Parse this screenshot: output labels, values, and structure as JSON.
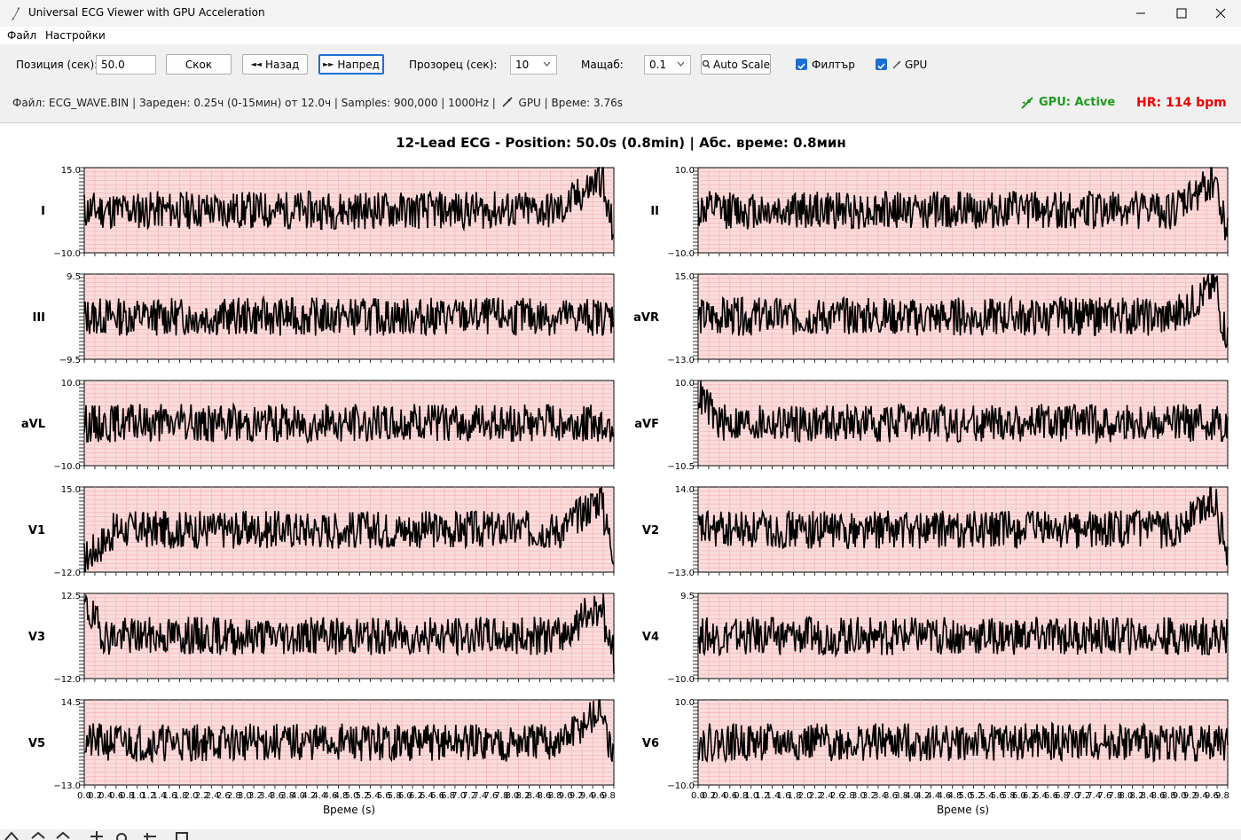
{
  "window": {
    "title": "Universal ECG Viewer with GPU Acceleration"
  },
  "menu": [
    "Файл",
    "Настройки"
  ],
  "controls": {
    "position_label": "Позиция (сек):",
    "position_value": "50.0",
    "jump_label": "Скок",
    "back_label": "Назад",
    "back_icon": "◄◄",
    "forward_label": "Напред",
    "forward_icon": "►►",
    "window_label": "Прозорец (сек):",
    "window_value": "10",
    "scale_label": "Мащаб:",
    "scale_value": "0.1",
    "auto_scale_label": "Auto Scale",
    "filter_label": "Филтър",
    "filter_checked": true,
    "gpu_label": "GPU",
    "gpu_checked": true
  },
  "status": {
    "info": "Файл: ECG_WAVE.BIN | Зареден: 0.25ч (0-15мин) от 12.0ч | Samples: 900,000 | 1000Hz |",
    "info_gpu": "GPU | Време: 3.76s",
    "gpu_state": "GPU: Active",
    "heart_rate": "HR: 114 bpm"
  },
  "colors": {
    "accent": "#1a6fd1",
    "gpu_active": "#1e9a1e",
    "heart_rate": "#ee0000",
    "grid_bg": "#fbdcdc",
    "grid_line": "#f2b0b0",
    "trace": "#000000"
  },
  "chart_data": {
    "type": "line",
    "title": "12-Lead ECG - Position: 50.0s (0.8min) | Абс. време: 0.8мин",
    "xlabel": "Време (s)",
    "x_range": [
      0,
      9.9
    ],
    "x_ticks": [
      "0.0",
      "0.2",
      "0.4",
      "0.6",
      "0.8",
      "1.0",
      "1.2",
      "1.4",
      "1.6",
      "1.8",
      "2.0",
      "2.2",
      "2.4",
      "2.6",
      "2.8",
      "3.0",
      "3.2",
      "3.4",
      "3.6",
      "3.8",
      "4.0",
      "4.2",
      "4.4",
      "4.6",
      "4.8",
      "5.0",
      "5.2",
      "5.4",
      "5.6",
      "5.8",
      "6.0",
      "6.2",
      "6.4",
      "6.6",
      "6.8",
      "7.0",
      "7.2",
      "7.4",
      "7.6",
      "7.8",
      "8.0",
      "8.2",
      "8.4",
      "8.6",
      "8.8",
      "9.0",
      "9.2",
      "9.4",
      "9.6",
      "9.8"
    ],
    "grid": true,
    "leads": [
      {
        "name": "I",
        "ylim": [
          -10.0,
          15.0
        ],
        "col": 0,
        "row": 0,
        "pattern": "end_peak",
        "seed": 11
      },
      {
        "name": "II",
        "ylim": [
          -10.0,
          10.0
        ],
        "col": 1,
        "row": 0,
        "pattern": "end_peak",
        "seed": 12
      },
      {
        "name": "III",
        "ylim": [
          -9.5,
          9.5
        ],
        "col": 0,
        "row": 1,
        "pattern": "noise",
        "seed": 13
      },
      {
        "name": "aVR",
        "ylim": [
          -13.0,
          15.0
        ],
        "col": 1,
        "row": 1,
        "pattern": "end_peak",
        "seed": 14
      },
      {
        "name": "aVL",
        "ylim": [
          -10.0,
          10.0
        ],
        "col": 0,
        "row": 2,
        "pattern": "noise",
        "seed": 15
      },
      {
        "name": "aVF",
        "ylim": [
          -10.5,
          10.0
        ],
        "col": 1,
        "row": 2,
        "pattern": "start_high",
        "seed": 16
      },
      {
        "name": "V1",
        "ylim": [
          -12.0,
          15.0
        ],
        "col": 0,
        "row": 3,
        "pattern": "start_low_end_peak",
        "seed": 17
      },
      {
        "name": "V2",
        "ylim": [
          -13.0,
          14.0
        ],
        "col": 1,
        "row": 3,
        "pattern": "end_peak",
        "seed": 18
      },
      {
        "name": "V3",
        "ylim": [
          -12.0,
          12.5
        ],
        "col": 0,
        "row": 4,
        "pattern": "start_high_end_peak",
        "seed": 19
      },
      {
        "name": "V4",
        "ylim": [
          -10.0,
          9.5
        ],
        "col": 1,
        "row": 4,
        "pattern": "noise",
        "seed": 20
      },
      {
        "name": "V5",
        "ylim": [
          -13.0,
          14.5
        ],
        "col": 0,
        "row": 5,
        "pattern": "end_peak",
        "seed": 21
      },
      {
        "name": "V6",
        "ylim": [
          -10.0,
          10.0
        ],
        "col": 1,
        "row": 5,
        "pattern": "noise",
        "seed": 22
      }
    ]
  }
}
